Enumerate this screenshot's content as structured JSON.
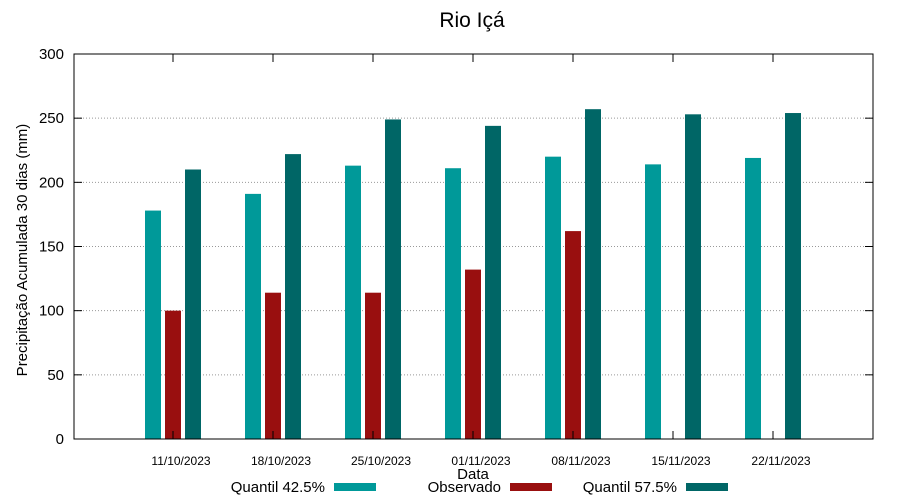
{
  "chart_data": {
    "type": "bar",
    "title": "Rio Içá",
    "xlabel": "Data",
    "ylabel": "Precipitação Acumulada 30 dias (mm)",
    "ylim": [
      0,
      300
    ],
    "yticks": [
      "0",
      "50",
      "100",
      "150",
      "200",
      "250",
      "300"
    ],
    "grid": true,
    "legend_position": "bottom",
    "categories": [
      "11/10/2023",
      "18/10/2023",
      "25/10/2023",
      "01/11/2023",
      "08/11/2023",
      "15/11/2023",
      "22/11/2023"
    ],
    "series": [
      {
        "name": "Quantil 42.5%",
        "color": "#009999",
        "values": [
          178,
          191,
          213,
          211,
          220,
          214,
          219
        ]
      },
      {
        "name": "Observado",
        "color": "#990F0F",
        "values": [
          100,
          114,
          114,
          132,
          162,
          null,
          null
        ]
      },
      {
        "name": "Quantil 57.5%",
        "color": "#006666",
        "values": [
          210,
          222,
          249,
          244,
          257,
          253,
          254
        ]
      }
    ]
  }
}
